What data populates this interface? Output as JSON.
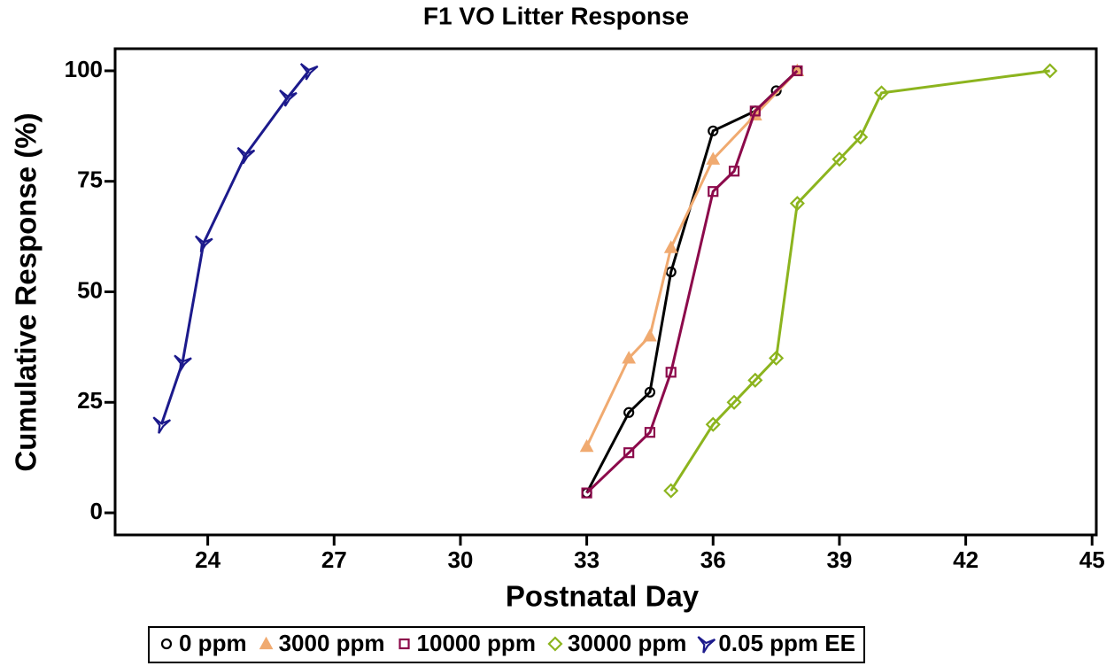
{
  "chart_data": {
    "type": "line",
    "title": "F1 VO Litter Response",
    "x_label": "Postnatal Day",
    "y_label": "Cumulative Response (%)",
    "xlim": [
      21.8,
      45.1
    ],
    "ylim": [
      -5,
      105
    ],
    "xticks": [
      24,
      27,
      30,
      33,
      36,
      39,
      42,
      45
    ],
    "yticks": [
      0,
      25,
      50,
      75,
      100
    ],
    "legend": "bottom",
    "series": [
      {
        "name": "0 ppm",
        "color": "#000000",
        "marker": "circle",
        "x": [
          33,
          34,
          34.5,
          35,
          36,
          37,
          37.5,
          38
        ],
        "values": [
          4.5,
          22.7,
          27.3,
          54.5,
          86.4,
          90.9,
          95.5,
          100
        ]
      },
      {
        "name": "3000 ppm",
        "color": "#f0aa70",
        "marker": "triangle",
        "x": [
          33,
          34,
          34.5,
          35,
          36,
          37,
          38
        ],
        "values": [
          15,
          35,
          40,
          60,
          80,
          90,
          100
        ]
      },
      {
        "name": "10000 ppm",
        "color": "#8c0a4b",
        "marker": "square",
        "x": [
          33,
          34,
          34.5,
          35,
          36,
          36.5,
          37,
          38
        ],
        "values": [
          4.5,
          13.6,
          18.2,
          31.8,
          72.7,
          77.3,
          90.9,
          100
        ]
      },
      {
        "name": "30000 ppm",
        "color": "#8cb41e",
        "marker": "diamond",
        "x": [
          35,
          36,
          36.5,
          37,
          37.5,
          38,
          39,
          39.5,
          40,
          44
        ],
        "values": [
          5,
          20,
          25,
          30,
          35,
          70,
          80,
          85,
          95,
          100
        ]
      },
      {
        "name": "0.05 ppm EE",
        "color": "#1c1a8c",
        "marker": "arrow",
        "x": [
          22.9,
          23.4,
          23.9,
          24.9,
          25.9,
          26.4
        ],
        "values": [
          20,
          34,
          61,
          81,
          94,
          100
        ]
      }
    ]
  }
}
